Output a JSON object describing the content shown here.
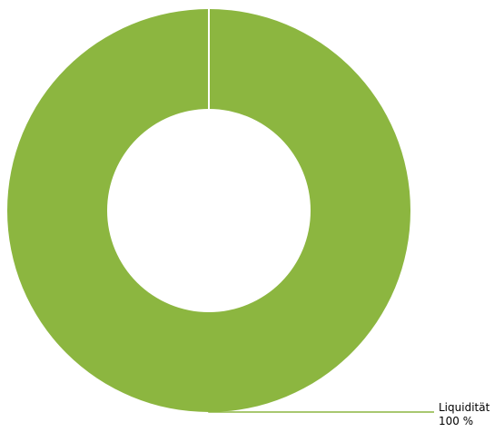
{
  "chart_data": {
    "type": "pie",
    "variant": "donut",
    "title": "",
    "legend": "none",
    "slices": [
      {
        "label": "Liquidität",
        "value": 100,
        "value_label": "100 %",
        "color": "#8cb640"
      }
    ],
    "leader_line_color": "#8cb640",
    "separator_color": "#ffffff"
  }
}
